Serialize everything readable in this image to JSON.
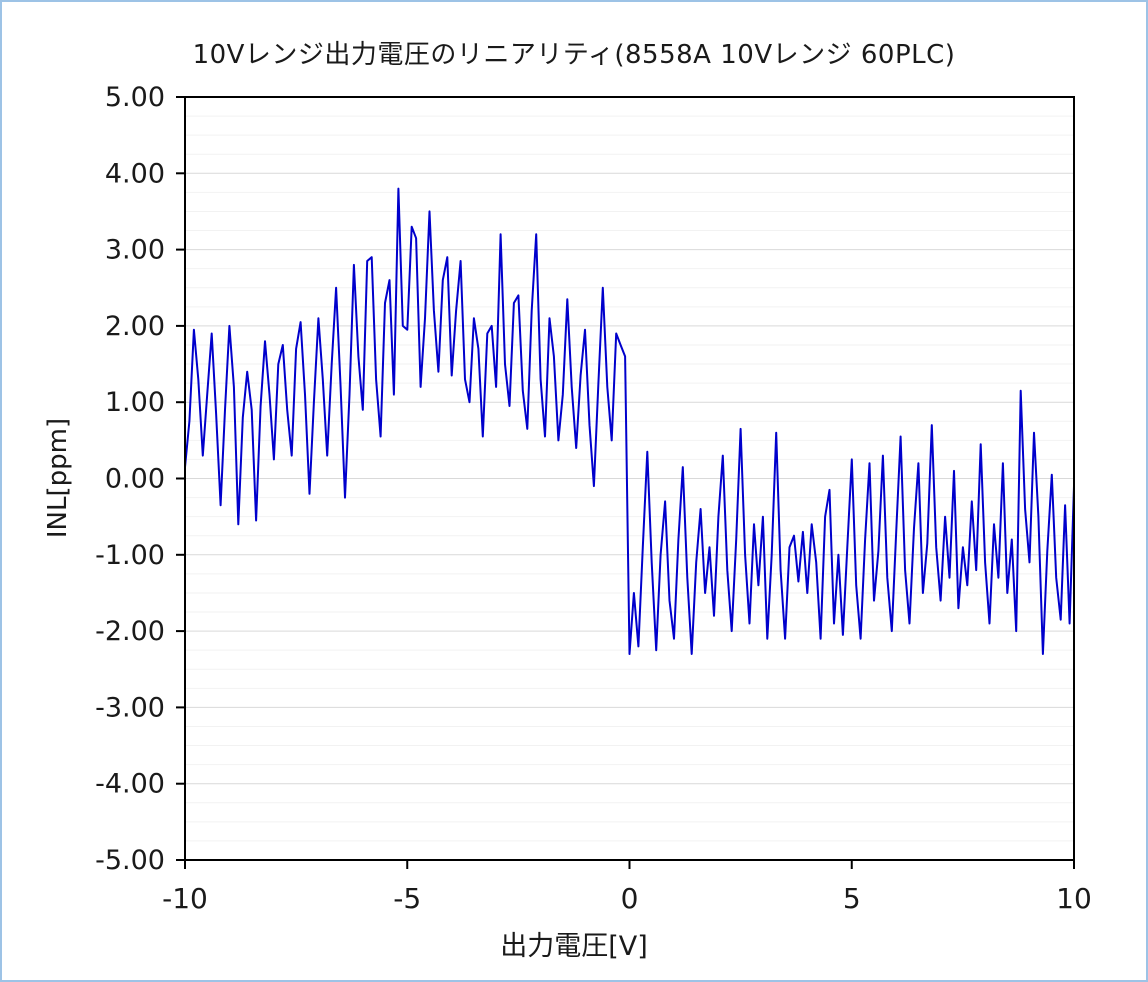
{
  "colors": {
    "series": "#0000CC",
    "grid_major": "#d9d9d9",
    "grid_minor": "#f2f2f2",
    "axis": "#000000",
    "frame_border": "#9dc3e6",
    "text": "#1a1a1a"
  },
  "chart_data": {
    "type": "line",
    "title": "10Vレンジ出力電圧のリニアリティ(8558A 10Vレンジ 60PLC)",
    "xlabel": "出力電圧[V]",
    "ylabel": "INL[ppm]",
    "xlim": [
      -10,
      10
    ],
    "ylim": [
      -5,
      5
    ],
    "x_ticks": [
      -10,
      -5,
      0,
      5,
      10
    ],
    "x_tick_labels": [
      "-10",
      "-5",
      "0",
      "5",
      "10"
    ],
    "y_ticks": [
      5,
      4,
      3,
      2,
      1,
      0,
      -1,
      -2,
      -3,
      -4,
      -5
    ],
    "y_tick_labels": [
      "5.00",
      "4.00",
      "3.00",
      "2.00",
      "1.00",
      "0.00",
      "-1.00",
      "-2.00",
      "-3.00",
      "-4.00",
      "-5.00"
    ],
    "grid": {
      "horizontal_major_step": 1.0,
      "horizontal_minor_step": 0.25,
      "vertical": false
    },
    "legend_position": "none",
    "line_color": "#0000CC",
    "line_width": 2,
    "series": [
      {
        "name": "INL",
        "x": [
          -10,
          -9.9,
          -9.8,
          -9.7,
          -9.6,
          -9.5,
          -9.4,
          -9.3,
          -9.2,
          -9.1,
          -9,
          -8.9,
          -8.8,
          -8.7,
          -8.6,
          -8.5,
          -8.4,
          -8.3,
          -8.2,
          -8.1,
          -8,
          -7.9,
          -7.8,
          -7.7,
          -7.6,
          -7.5,
          -7.4,
          -7.3,
          -7.2,
          -7.1,
          -7,
          -6.9,
          -6.8,
          -6.7,
          -6.6,
          -6.5,
          -6.4,
          -6.3,
          -6.2,
          -6.1,
          -6,
          -5.9,
          -5.8,
          -5.7,
          -5.6,
          -5.5,
          -5.4,
          -5.3,
          -5.2,
          -5.1,
          -5,
          -4.9,
          -4.8,
          -4.7,
          -4.6,
          -4.5,
          -4.4,
          -4.3,
          -4.2,
          -4.1,
          -4,
          -3.9,
          -3.8,
          -3.7,
          -3.6,
          -3.5,
          -3.4,
          -3.3,
          -3.2,
          -3.1,
          -3,
          -2.9,
          -2.8,
          -2.7,
          -2.6,
          -2.5,
          -2.4,
          -2.3,
          -2.2,
          -2.1,
          -2,
          -1.9,
          -1.8,
          -1.7,
          -1.6,
          -1.5,
          -1.4,
          -1.3,
          -1.2,
          -1.1,
          -1,
          -0.9,
          -0.8,
          -0.7,
          -0.6,
          -0.5,
          -0.4,
          -0.3,
          -0.2,
          -0.1,
          0,
          0.1,
          0.2,
          0.3,
          0.4,
          0.5,
          0.6,
          0.7,
          0.8,
          0.9,
          1,
          1.1,
          1.2,
          1.3,
          1.4,
          1.5,
          1.6,
          1.7,
          1.8,
          1.9,
          2,
          2.1,
          2.2,
          2.3,
          2.4,
          2.5,
          2.6,
          2.7,
          2.8,
          2.9,
          3,
          3.1,
          3.2,
          3.3,
          3.4,
          3.5,
          3.6,
          3.7,
          3.8,
          3.9,
          4,
          4.1,
          4.2,
          4.3,
          4.4,
          4.5,
          4.6,
          4.7,
          4.8,
          4.9,
          5,
          5.1,
          5.2,
          5.3,
          5.4,
          5.5,
          5.6,
          5.7,
          5.8,
          5.9,
          6,
          6.1,
          6.2,
          6.3,
          6.4,
          6.5,
          6.6,
          6.7,
          6.8,
          6.9,
          7,
          7.1,
          7.2,
          7.3,
          7.4,
          7.5,
          7.6,
          7.7,
          7.8,
          7.9,
          8,
          8.1,
          8.2,
          8.3,
          8.4,
          8.5,
          8.6,
          8.7,
          8.8,
          8.9,
          9,
          9.1,
          9.2,
          9.3,
          9.4,
          9.5,
          9.6,
          9.7,
          9.8,
          9.9,
          10
        ],
        "y": [
          0.15,
          0.75,
          1.95,
          1.3,
          0.3,
          1.1,
          1.9,
          0.85,
          -0.35,
          0.9,
          2.0,
          1.2,
          -0.6,
          0.8,
          1.4,
          0.9,
          -0.55,
          0.95,
          1.8,
          1.1,
          0.25,
          1.5,
          1.75,
          0.9,
          0.3,
          1.7,
          2.05,
          1.1,
          -0.2,
          1.0,
          2.1,
          1.3,
          0.3,
          1.5,
          2.5,
          1.2,
          -0.25,
          1.1,
          2.8,
          1.6,
          0.9,
          2.85,
          2.9,
          1.3,
          0.55,
          2.3,
          2.6,
          1.1,
          3.8,
          2.0,
          1.95,
          3.3,
          3.15,
          1.2,
          2.1,
          3.5,
          2.2,
          1.4,
          2.6,
          2.9,
          1.35,
          2.2,
          2.85,
          1.3,
          1.0,
          2.1,
          1.7,
          0.55,
          1.9,
          2.0,
          1.2,
          3.2,
          1.5,
          0.95,
          2.3,
          2.4,
          1.15,
          0.65,
          2.2,
          3.2,
          1.3,
          0.55,
          2.1,
          1.6,
          0.5,
          1.1,
          2.35,
          1.2,
          0.4,
          1.35,
          1.95,
          0.7,
          -0.1,
          1.25,
          2.5,
          1.2,
          0.5,
          1.9,
          1.75,
          1.6,
          -2.3,
          -1.5,
          -2.2,
          -0.9,
          0.35,
          -1.1,
          -2.25,
          -1.0,
          -0.3,
          -1.6,
          -2.1,
          -0.8,
          0.15,
          -1.3,
          -2.3,
          -1.1,
          -0.4,
          -1.5,
          -0.9,
          -1.8,
          -0.5,
          0.3,
          -1.2,
          -2.0,
          -0.8,
          0.65,
          -1.0,
          -1.9,
          -0.6,
          -1.4,
          -0.5,
          -2.1,
          -1.0,
          0.6,
          -1.2,
          -2.1,
          -0.9,
          -0.75,
          -1.35,
          -0.7,
          -1.5,
          -0.6,
          -1.1,
          -2.1,
          -0.5,
          -0.15,
          -1.9,
          -1.0,
          -2.05,
          -0.9,
          0.25,
          -1.4,
          -2.1,
          -0.8,
          0.2,
          -1.6,
          -0.95,
          0.3,
          -1.3,
          -2.0,
          -0.7,
          0.55,
          -1.2,
          -1.9,
          -0.65,
          0.2,
          -1.5,
          -0.85,
          0.7,
          -0.9,
          -1.6,
          -0.5,
          -1.3,
          0.1,
          -1.7,
          -0.9,
          -1.4,
          -0.3,
          -1.2,
          0.45,
          -1.1,
          -1.9,
          -0.6,
          -1.3,
          0.2,
          -1.5,
          -0.8,
          -2.0,
          1.15,
          -0.4,
          -1.1,
          0.6,
          -0.5,
          -2.3,
          -0.95,
          0.05,
          -1.3,
          -1.85,
          -0.35,
          -1.9,
          -0.1
        ]
      }
    ]
  }
}
